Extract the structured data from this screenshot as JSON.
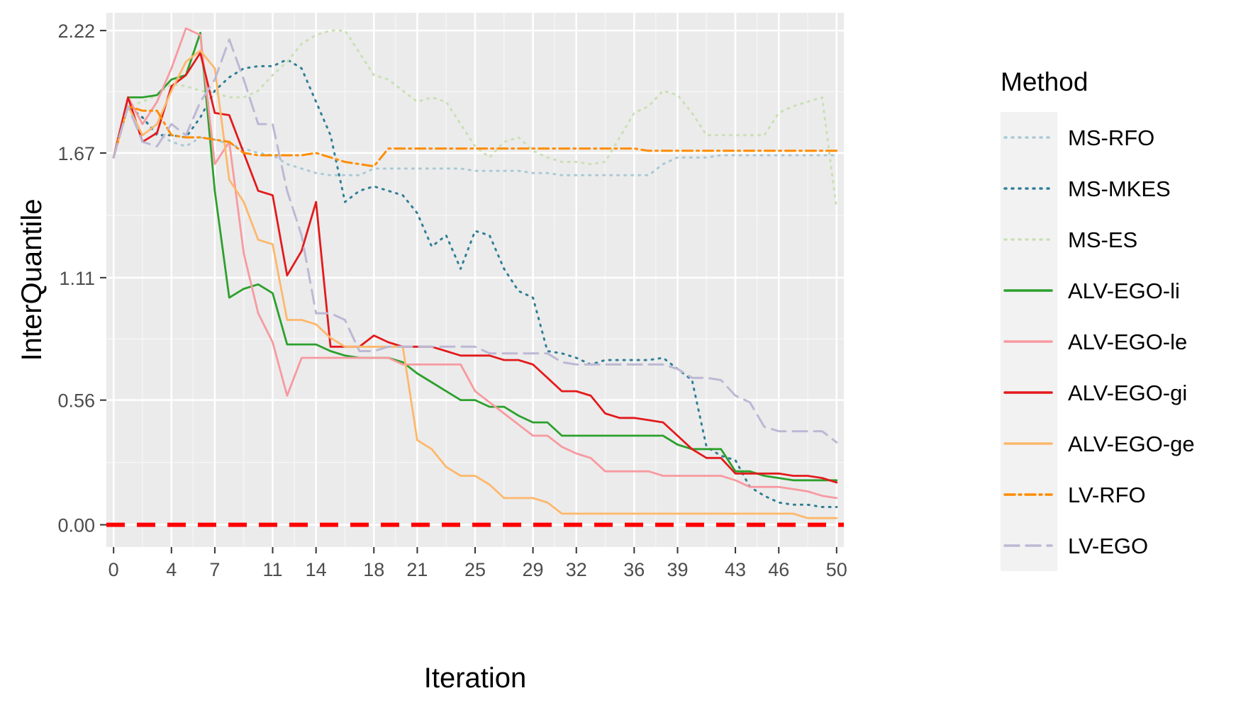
{
  "chart_data": {
    "type": "line",
    "xlabel": "Iteration",
    "ylabel": "InterQuantile",
    "xlim": [
      -0.5,
      50.5
    ],
    "ylim": [
      -0.1,
      2.3
    ],
    "x_ticks": [
      0,
      4,
      7,
      11,
      14,
      18,
      21,
      25,
      29,
      32,
      36,
      39,
      43,
      46,
      50
    ],
    "y_ticks": [
      0.0,
      0.56,
      1.11,
      1.67,
      2.22
    ],
    "y_tick_labels": [
      "0.00",
      "0.56",
      "1.11",
      "1.67",
      "2.22"
    ],
    "grid": true,
    "legend_title": "Method",
    "legend_position": "right",
    "reference_line": {
      "y": 0.0,
      "color": "#ff0000",
      "style": "dashed"
    },
    "series": [
      {
        "name": "MS-RFO",
        "color": "#a9c9d6",
        "dash": "dotted",
        "opacity": 1,
        "x": [
          0,
          1,
          2,
          3,
          4,
          5,
          6,
          7,
          8,
          9,
          10,
          11,
          12,
          13,
          14,
          15,
          16,
          17,
          18,
          19,
          20,
          21,
          22,
          23,
          24,
          25,
          26,
          27,
          28,
          29,
          30,
          31,
          32,
          33,
          34,
          35,
          36,
          37,
          38,
          39,
          40,
          41,
          42,
          43,
          44,
          45,
          46,
          47,
          48,
          49,
          50
        ],
        "y": [
          1.65,
          1.88,
          1.83,
          1.76,
          1.72,
          1.7,
          1.74,
          1.73,
          1.71,
          1.69,
          1.67,
          1.66,
          1.62,
          1.6,
          1.58,
          1.57,
          1.57,
          1.57,
          1.6,
          1.6,
          1.6,
          1.6,
          1.6,
          1.6,
          1.6,
          1.59,
          1.59,
          1.59,
          1.59,
          1.58,
          1.58,
          1.57,
          1.57,
          1.57,
          1.57,
          1.57,
          1.57,
          1.57,
          1.62,
          1.65,
          1.65,
          1.65,
          1.66,
          1.66,
          1.66,
          1.66,
          1.66,
          1.66,
          1.66,
          1.66,
          1.66
        ]
      },
      {
        "name": "MS-MKES",
        "color": "#2f7f96",
        "dash": "dotted",
        "opacity": 1,
        "x": [
          0,
          1,
          2,
          3,
          4,
          5,
          6,
          7,
          8,
          9,
          10,
          11,
          12,
          13,
          14,
          15,
          16,
          17,
          18,
          19,
          20,
          21,
          22,
          23,
          24,
          25,
          26,
          27,
          28,
          29,
          30,
          31,
          32,
          33,
          34,
          35,
          36,
          37,
          38,
          39,
          40,
          41,
          42,
          43,
          44,
          45,
          46,
          47,
          48,
          49,
          50
        ],
        "y": [
          1.65,
          1.88,
          1.83,
          1.75,
          1.75,
          1.74,
          1.83,
          1.95,
          2.01,
          2.05,
          2.06,
          2.06,
          2.09,
          2.05,
          1.9,
          1.75,
          1.45,
          1.5,
          1.52,
          1.5,
          1.48,
          1.4,
          1.25,
          1.3,
          1.15,
          1.32,
          1.3,
          1.15,
          1.05,
          1.02,
          0.78,
          0.77,
          0.75,
          0.72,
          0.74,
          0.74,
          0.74,
          0.74,
          0.75,
          0.7,
          0.65,
          0.35,
          0.31,
          0.29,
          0.17,
          0.13,
          0.1,
          0.09,
          0.09,
          0.08,
          0.08
        ]
      },
      {
        "name": "MS-ES",
        "color": "#c9e0b4",
        "dash": "dotted",
        "opacity": 1,
        "x": [
          0,
          1,
          2,
          3,
          4,
          5,
          6,
          7,
          8,
          9,
          10,
          11,
          12,
          13,
          14,
          15,
          16,
          17,
          18,
          19,
          20,
          21,
          22,
          23,
          24,
          25,
          26,
          27,
          28,
          29,
          30,
          31,
          32,
          33,
          34,
          35,
          36,
          37,
          38,
          39,
          40,
          41,
          42,
          43,
          44,
          45,
          46,
          47,
          48,
          49,
          50
        ],
        "y": [
          1.65,
          1.88,
          1.9,
          1.93,
          1.98,
          1.97,
          1.95,
          1.94,
          1.92,
          1.92,
          1.95,
          2.02,
          2.08,
          2.16,
          2.2,
          2.22,
          2.22,
          2.12,
          2.02,
          2.0,
          1.95,
          1.9,
          1.92,
          1.9,
          1.8,
          1.7,
          1.65,
          1.72,
          1.74,
          1.68,
          1.65,
          1.63,
          1.63,
          1.62,
          1.63,
          1.74,
          1.85,
          1.88,
          1.95,
          1.93,
          1.85,
          1.75,
          1.75,
          1.75,
          1.75,
          1.75,
          1.85,
          1.88,
          1.9,
          1.92,
          1.42
        ]
      },
      {
        "name": "ALV-EGO-li",
        "color": "#2ca02c",
        "dash": "solid",
        "opacity": 1,
        "x": [
          0,
          1,
          2,
          3,
          4,
          5,
          6,
          7,
          8,
          9,
          10,
          11,
          12,
          13,
          14,
          15,
          16,
          17,
          18,
          19,
          20,
          21,
          22,
          23,
          24,
          25,
          26,
          27,
          28,
          29,
          30,
          31,
          32,
          33,
          34,
          35,
          36,
          37,
          38,
          39,
          40,
          41,
          42,
          43,
          44,
          45,
          46,
          47,
          48,
          49,
          50
        ],
        "y": [
          1.65,
          1.92,
          1.92,
          1.93,
          2.0,
          2.02,
          2.21,
          1.5,
          1.02,
          1.06,
          1.08,
          1.04,
          0.81,
          0.81,
          0.81,
          0.78,
          0.76,
          0.75,
          0.75,
          0.75,
          0.73,
          0.68,
          0.64,
          0.6,
          0.56,
          0.56,
          0.53,
          0.53,
          0.49,
          0.46,
          0.46,
          0.4,
          0.4,
          0.4,
          0.4,
          0.4,
          0.4,
          0.4,
          0.4,
          0.36,
          0.34,
          0.34,
          0.34,
          0.24,
          0.24,
          0.22,
          0.21,
          0.2,
          0.2,
          0.2,
          0.2
        ]
      },
      {
        "name": "ALV-EGO-le",
        "color": "#f79aa0",
        "dash": "solid",
        "opacity": 1,
        "x": [
          0,
          1,
          2,
          3,
          4,
          5,
          6,
          7,
          8,
          9,
          10,
          11,
          12,
          13,
          14,
          15,
          16,
          17,
          18,
          19,
          20,
          21,
          22,
          23,
          24,
          25,
          26,
          27,
          28,
          29,
          30,
          31,
          32,
          33,
          34,
          35,
          36,
          37,
          38,
          39,
          40,
          41,
          42,
          43,
          44,
          45,
          46,
          47,
          48,
          49,
          50
        ],
        "y": [
          1.65,
          1.92,
          1.8,
          1.9,
          2.05,
          2.23,
          2.2,
          1.62,
          1.72,
          1.22,
          0.95,
          0.82,
          0.58,
          0.75,
          0.75,
          0.75,
          0.75,
          0.75,
          0.75,
          0.75,
          0.72,
          0.72,
          0.72,
          0.72,
          0.72,
          0.6,
          0.55,
          0.5,
          0.45,
          0.4,
          0.4,
          0.35,
          0.32,
          0.3,
          0.24,
          0.24,
          0.24,
          0.24,
          0.22,
          0.22,
          0.22,
          0.22,
          0.22,
          0.2,
          0.17,
          0.17,
          0.17,
          0.16,
          0.15,
          0.13,
          0.12
        ]
      },
      {
        "name": "ALV-EGO-gi",
        "color": "#e31a1c",
        "dash": "solid",
        "opacity": 1,
        "x": [
          0,
          1,
          2,
          3,
          4,
          5,
          6,
          7,
          8,
          9,
          10,
          11,
          12,
          13,
          14,
          15,
          16,
          17,
          18,
          19,
          20,
          21,
          22,
          23,
          24,
          25,
          26,
          27,
          28,
          29,
          30,
          31,
          32,
          33,
          34,
          35,
          36,
          37,
          38,
          39,
          40,
          41,
          42,
          43,
          44,
          45,
          46,
          47,
          48,
          49,
          50
        ],
        "y": [
          1.65,
          1.92,
          1.72,
          1.76,
          1.97,
          2.02,
          2.12,
          1.85,
          1.84,
          1.67,
          1.5,
          1.48,
          1.12,
          1.23,
          1.45,
          0.8,
          0.8,
          0.8,
          0.85,
          0.82,
          0.8,
          0.8,
          0.8,
          0.78,
          0.76,
          0.76,
          0.76,
          0.74,
          0.74,
          0.72,
          0.66,
          0.6,
          0.6,
          0.58,
          0.5,
          0.48,
          0.48,
          0.47,
          0.46,
          0.4,
          0.34,
          0.3,
          0.3,
          0.23,
          0.23,
          0.23,
          0.23,
          0.22,
          0.22,
          0.21,
          0.19
        ]
      },
      {
        "name": "ALV-EGO-ge",
        "color": "#fdb86b",
        "dash": "solid",
        "opacity": 1,
        "x": [
          0,
          1,
          2,
          3,
          4,
          5,
          6,
          7,
          8,
          9,
          10,
          11,
          12,
          13,
          14,
          15,
          16,
          17,
          18,
          19,
          20,
          21,
          22,
          23,
          24,
          25,
          26,
          27,
          28,
          29,
          30,
          31,
          32,
          33,
          34,
          35,
          36,
          37,
          38,
          39,
          40,
          41,
          42,
          43,
          44,
          45,
          46,
          47,
          48,
          49,
          50
        ],
        "y": [
          1.65,
          1.88,
          1.75,
          1.8,
          1.95,
          2.08,
          2.13,
          2.05,
          1.55,
          1.45,
          1.28,
          1.26,
          0.92,
          0.92,
          0.9,
          0.84,
          0.8,
          0.8,
          0.8,
          0.8,
          0.8,
          0.38,
          0.34,
          0.26,
          0.22,
          0.22,
          0.18,
          0.12,
          0.12,
          0.12,
          0.1,
          0.05,
          0.05,
          0.05,
          0.05,
          0.05,
          0.05,
          0.05,
          0.05,
          0.05,
          0.05,
          0.05,
          0.05,
          0.05,
          0.05,
          0.05,
          0.05,
          0.05,
          0.03,
          0.03,
          0.03
        ]
      },
      {
        "name": "LV-RFO",
        "color": "#ff8c00",
        "dash": "dashdot",
        "opacity": 1,
        "x": [
          0,
          1,
          2,
          3,
          4,
          5,
          6,
          7,
          8,
          9,
          10,
          11,
          12,
          13,
          14,
          15,
          16,
          17,
          18,
          19,
          20,
          21,
          22,
          23,
          24,
          25,
          26,
          27,
          28,
          29,
          30,
          31,
          32,
          33,
          34,
          35,
          36,
          37,
          38,
          39,
          40,
          41,
          42,
          43,
          44,
          45,
          46,
          47,
          48,
          49,
          50
        ],
        "y": [
          1.65,
          1.88,
          1.86,
          1.86,
          1.75,
          1.74,
          1.74,
          1.73,
          1.72,
          1.67,
          1.66,
          1.66,
          1.66,
          1.66,
          1.67,
          1.65,
          1.63,
          1.62,
          1.61,
          1.69,
          1.69,
          1.69,
          1.69,
          1.69,
          1.69,
          1.69,
          1.69,
          1.69,
          1.69,
          1.69,
          1.69,
          1.69,
          1.69,
          1.69,
          1.69,
          1.69,
          1.69,
          1.68,
          1.68,
          1.68,
          1.68,
          1.68,
          1.68,
          1.68,
          1.68,
          1.68,
          1.68,
          1.68,
          1.68,
          1.68,
          1.68
        ]
      },
      {
        "name": "LV-EGO",
        "color": "#bcb8d4",
        "dash": "longdash",
        "opacity": 1,
        "x": [
          0,
          1,
          2,
          3,
          4,
          5,
          6,
          7,
          8,
          9,
          10,
          11,
          12,
          13,
          14,
          15,
          16,
          17,
          18,
          19,
          20,
          21,
          22,
          23,
          24,
          25,
          26,
          27,
          28,
          29,
          30,
          31,
          32,
          33,
          34,
          35,
          36,
          37,
          38,
          39,
          40,
          41,
          42,
          43,
          44,
          45,
          46,
          47,
          48,
          49,
          50
        ],
        "y": [
          1.65,
          1.88,
          1.72,
          1.7,
          1.8,
          1.75,
          1.9,
          2.0,
          2.18,
          2.0,
          1.8,
          1.8,
          1.5,
          1.3,
          0.95,
          0.95,
          0.92,
          0.78,
          0.78,
          0.8,
          0.8,
          0.8,
          0.8,
          0.8,
          0.8,
          0.8,
          0.77,
          0.77,
          0.77,
          0.77,
          0.77,
          0.73,
          0.72,
          0.72,
          0.72,
          0.72,
          0.72,
          0.72,
          0.72,
          0.7,
          0.66,
          0.66,
          0.65,
          0.58,
          0.55,
          0.44,
          0.42,
          0.42,
          0.42,
          0.42,
          0.37
        ]
      }
    ]
  }
}
